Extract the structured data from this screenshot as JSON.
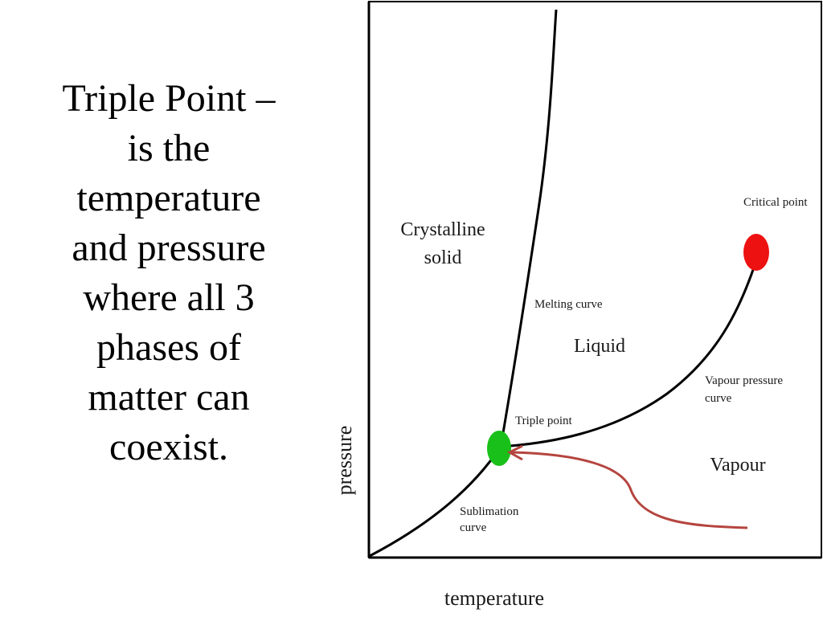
{
  "slide": {
    "text_lines": [
      "Triple Point –",
      "is the",
      "temperature",
      "and pressure",
      "where all 3",
      "phases of",
      "matter can",
      "coexist."
    ]
  },
  "diagram": {
    "axes": {
      "x_label": "temperature",
      "y_label": "pressure"
    },
    "regions": {
      "solid_line1": "Crystalline",
      "solid_line2": "solid",
      "liquid": "Liquid",
      "vapour": "Vapour"
    },
    "curves": {
      "melting": "Melting curve",
      "vapour_pressure_line1": "Vapour pressure",
      "vapour_pressure_line2": "curve",
      "sublimation_line1": "Sublimation",
      "sublimation_line2": "curve"
    },
    "points": {
      "triple": "Triple point",
      "critical": "Critical point"
    },
    "colors": {
      "triple_point": "#19c019",
      "critical_point": "#ee1111",
      "arrow": "#b5453f",
      "curves": "#000000"
    }
  }
}
